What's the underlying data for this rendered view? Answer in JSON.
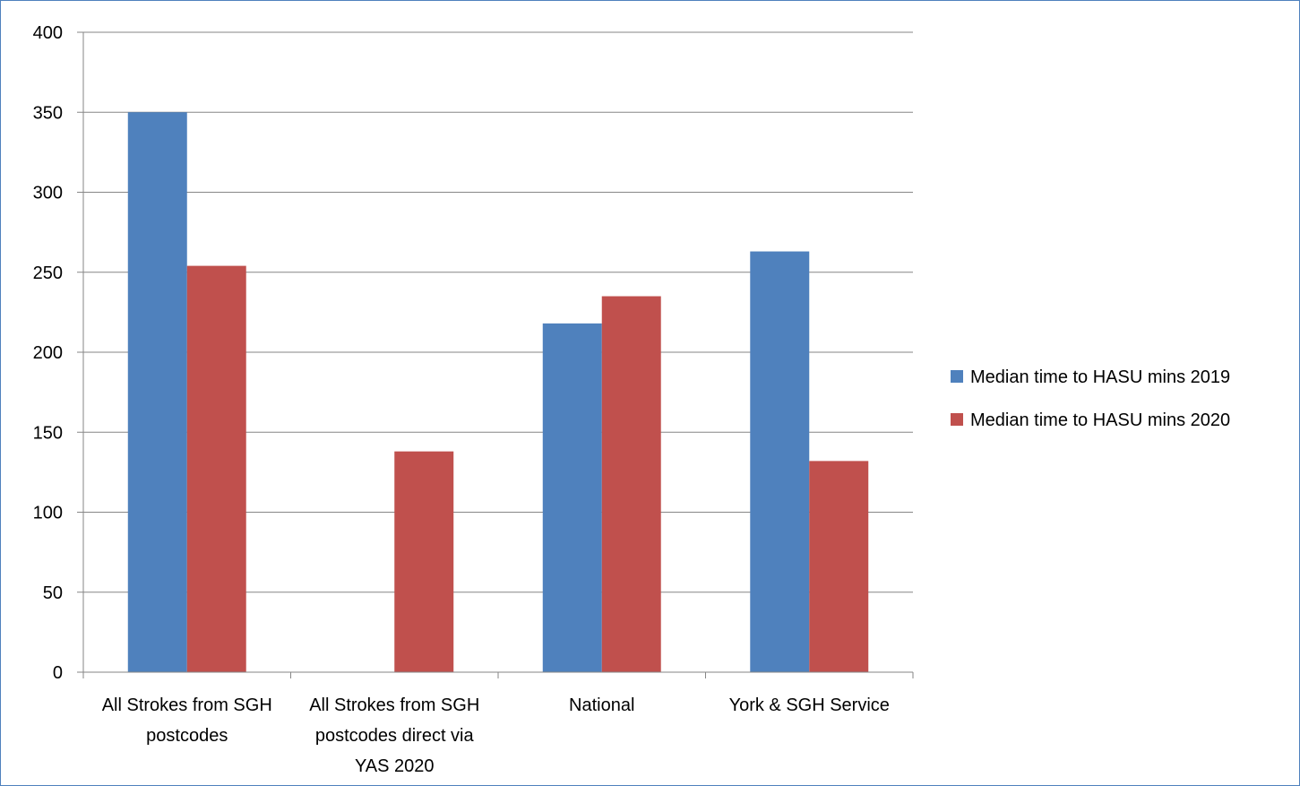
{
  "chart_data": {
    "type": "bar",
    "categories": [
      [
        "All Strokes from SGH",
        "postcodes"
      ],
      [
        "All Strokes from SGH",
        "postcodes direct via",
        "YAS 2020"
      ],
      [
        "National"
      ],
      [
        "York & SGH Service"
      ]
    ],
    "series": [
      {
        "name": "Median time to HASU mins 2019",
        "color": "#4f81bd",
        "values": [
          350,
          0,
          218,
          263
        ]
      },
      {
        "name": "Median time to HASU mins 2020",
        "color": "#c0504d",
        "values": [
          254,
          138,
          235,
          132
        ]
      }
    ],
    "yticks": [
      "0",
      "50",
      "100",
      "150",
      "200",
      "250",
      "300",
      "350",
      "400"
    ],
    "ylim": [
      0,
      400
    ],
    "grid": true,
    "legend_position": "right",
    "title": "",
    "xlabel": "",
    "ylabel": ""
  }
}
